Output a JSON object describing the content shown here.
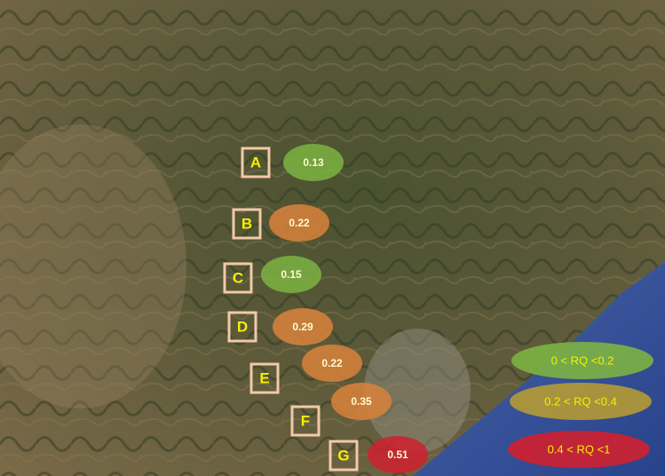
{
  "sites": [
    {
      "label": "A",
      "value": "0.13",
      "color": "#7cb342"
    },
    {
      "label": "B",
      "value": "0.22",
      "color": "#d9823b"
    },
    {
      "label": "C",
      "value": "0.15",
      "color": "#7cb342"
    },
    {
      "label": "D",
      "value": "0.29",
      "color": "#d9823b"
    },
    {
      "label": "E",
      "value": "0.22",
      "color": "#d9823b"
    },
    {
      "label": "F",
      "value": "0.35",
      "color": "#d9823b"
    },
    {
      "label": "G",
      "value": "0.51",
      "color": "#d0202f"
    }
  ],
  "legend": [
    {
      "label": "0 < RQ <0.2",
      "color": "#7cb342"
    },
    {
      "label": "0.2 < RQ <0.4",
      "color": "#b59a35"
    },
    {
      "label": "0.4 < RQ <1",
      "color": "#d0202f"
    }
  ]
}
